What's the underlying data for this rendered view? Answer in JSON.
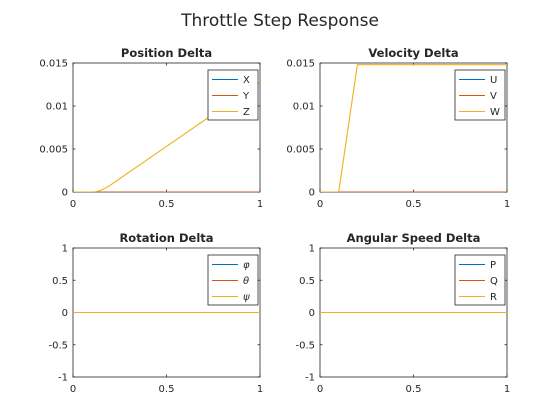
{
  "figure": {
    "title": "Throttle Step Response"
  },
  "colors": {
    "series1": "#0072BD",
    "series2": "#D95319",
    "series3": "#EDB120",
    "axis": "#262626"
  },
  "chart_data": [
    {
      "type": "line",
      "title": "Position Delta",
      "xlim": [
        0,
        1
      ],
      "ylim": [
        0,
        0.015
      ],
      "xticks": [
        0,
        0.5,
        1
      ],
      "xticklabels": [
        "0",
        "0.5",
        "1"
      ],
      "yticks": [
        0,
        0.005,
        0.01,
        0.015
      ],
      "yticklabels": [
        "0",
        "0.005",
        "0.01",
        "0.015"
      ],
      "legend_position": "top-right",
      "series": [
        {
          "name": "X",
          "x": [
            0,
            1
          ],
          "y": [
            0,
            0
          ]
        },
        {
          "name": "Y",
          "x": [
            0,
            1
          ],
          "y": [
            0,
            0
          ]
        },
        {
          "name": "Z",
          "x": [
            0,
            0.1,
            0.12,
            0.14,
            0.16,
            0.18,
            0.2,
            0.3,
            0.5,
            0.7,
            0.9,
            1.0
          ],
          "y": [
            0,
            0,
            3e-05,
            0.00013,
            0.0003,
            0.00053,
            0.0008,
            0.0023,
            0.0053,
            0.0083,
            0.0113,
            0.0128
          ]
        }
      ]
    },
    {
      "type": "line",
      "title": "Velocity Delta",
      "xlim": [
        0,
        1
      ],
      "ylim": [
        0,
        0.015
      ],
      "xticks": [
        0,
        0.5,
        1
      ],
      "xticklabels": [
        "0",
        "0.5",
        "1"
      ],
      "yticks": [
        0,
        0.005,
        0.01,
        0.015
      ],
      "yticklabels": [
        "0",
        "0.005",
        "0.01",
        "0.015"
      ],
      "legend_position": "top-right",
      "series": [
        {
          "name": "U",
          "x": [
            0,
            1
          ],
          "y": [
            0,
            0
          ]
        },
        {
          "name": "V",
          "x": [
            0,
            1
          ],
          "y": [
            0,
            0
          ]
        },
        {
          "name": "W",
          "x": [
            0,
            0.1,
            0.2,
            1.0
          ],
          "y": [
            0,
            0,
            0.0148,
            0.0148
          ]
        }
      ]
    },
    {
      "type": "line",
      "title": "Rotation Delta",
      "xlim": [
        0,
        1
      ],
      "ylim": [
        -1,
        1
      ],
      "xticks": [
        0,
        0.5,
        1
      ],
      "xticklabels": [
        "0",
        "0.5",
        "1"
      ],
      "yticks": [
        -1,
        -0.5,
        0,
        0.5,
        1
      ],
      "yticklabels": [
        "-1",
        "-0.5",
        "0",
        "0.5",
        "1"
      ],
      "legend_position": "top-right",
      "series": [
        {
          "name": "φ",
          "x": [
            0,
            1
          ],
          "y": [
            0,
            0
          ]
        },
        {
          "name": "θ",
          "x": [
            0,
            1
          ],
          "y": [
            0,
            0
          ]
        },
        {
          "name": "ψ",
          "x": [
            0,
            1
          ],
          "y": [
            0,
            0
          ]
        }
      ]
    },
    {
      "type": "line",
      "title": "Angular Speed Delta",
      "xlim": [
        0,
        1
      ],
      "ylim": [
        -1,
        1
      ],
      "xticks": [
        0,
        0.5,
        1
      ],
      "xticklabels": [
        "0",
        "0.5",
        "1"
      ],
      "yticks": [
        -1,
        -0.5,
        0,
        0.5,
        1
      ],
      "yticklabels": [
        "-1",
        "-0.5",
        "0",
        "0.5",
        "1"
      ],
      "legend_position": "top-right",
      "series": [
        {
          "name": "P",
          "x": [
            0,
            1
          ],
          "y": [
            0,
            0
          ]
        },
        {
          "name": "Q",
          "x": [
            0,
            1
          ],
          "y": [
            0,
            0
          ]
        },
        {
          "name": "R",
          "x": [
            0,
            1
          ],
          "y": [
            0,
            0
          ]
        }
      ]
    }
  ]
}
